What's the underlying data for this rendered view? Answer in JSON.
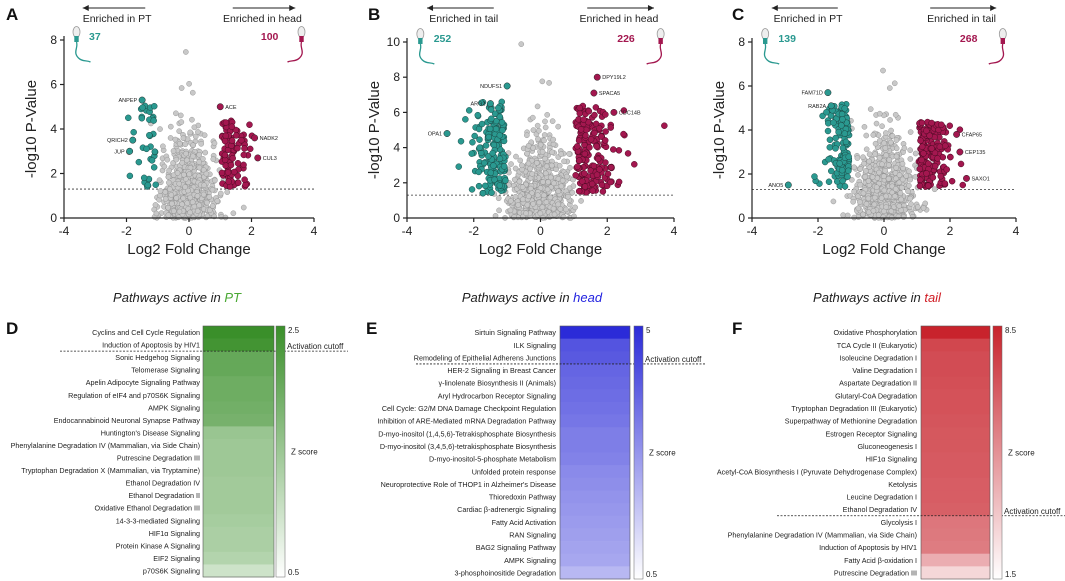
{
  "colors": {
    "teal": "#2a9990",
    "maroon": "#a3174f",
    "grey": "#c8c8c8",
    "pt_green": "#3a8f2a",
    "head_blue": "#2b2bd8",
    "tail_red": "#c8232c",
    "pt_word": "#49a833",
    "head_word": "#2323e0",
    "tail_word": "#d01c24"
  },
  "volcano_plots": [
    {
      "panel": "A",
      "left_label": "Enriched in PT",
      "right_label": "Enriched in head",
      "left_count": "37",
      "right_count": "100",
      "left_color": "#2a9990",
      "right_color": "#a3174f",
      "ylim": [
        0,
        8
      ],
      "yticks": [
        "0",
        "2",
        "4",
        "6",
        "8"
      ],
      "xticks": [
        "-4",
        "-2",
        "0",
        "2",
        "4"
      ],
      "xlabel": "Log2 Fold Change",
      "ylabel": "-log10 P-Value",
      "threshold": 1.3,
      "labels": [
        {
          "name": "ANPEP",
          "x": -1.5,
          "y": 5.3,
          "side": "left"
        },
        {
          "name": "QRICH2",
          "x": -1.8,
          "y": 3.5,
          "side": "left"
        },
        {
          "name": "JUP",
          "x": -1.9,
          "y": 3.0,
          "side": "left"
        },
        {
          "name": "ACE",
          "x": 1.0,
          "y": 5.0,
          "side": "right"
        },
        {
          "name": "NADK2",
          "x": 2.1,
          "y": 3.6,
          "side": "right"
        },
        {
          "name": "CUL3",
          "x": 2.2,
          "y": 2.7,
          "side": "right"
        }
      ]
    },
    {
      "panel": "B",
      "left_label": "Enriched in tail",
      "right_label": "Enriched in head",
      "left_count": "252",
      "right_count": "226",
      "left_color": "#2a9990",
      "right_color": "#a3174f",
      "ylim": [
        0,
        10
      ],
      "yticks": [
        "0",
        "2",
        "4",
        "6",
        "8",
        "10"
      ],
      "xticks": [
        "-4",
        "-2",
        "0",
        "2",
        "4"
      ],
      "xlabel": "Log2 Fold Change",
      "ylabel": "-log10 P-Value",
      "threshold": 1.3,
      "labels": [
        {
          "name": "NDUFS1",
          "x": -1.0,
          "y": 7.5,
          "side": "left"
        },
        {
          "name": "ARG2",
          "x": -1.5,
          "y": 6.5,
          "side": "left"
        },
        {
          "name": "OPA1",
          "x": -2.8,
          "y": 4.8,
          "side": "left"
        },
        {
          "name": "DPY19L2",
          "x": 1.7,
          "y": 8.0,
          "side": "right"
        },
        {
          "name": "SPACA5",
          "x": 1.6,
          "y": 7.1,
          "side": "right"
        },
        {
          "name": "CDC14B",
          "x": 2.2,
          "y": 6.0,
          "side": "right"
        }
      ]
    },
    {
      "panel": "C",
      "left_label": "Enriched in PT",
      "right_label": "Enriched in tail",
      "left_count": "139",
      "right_count": "268",
      "left_color": "#2a9990",
      "right_color": "#a3174f",
      "ylim": [
        0,
        8
      ],
      "yticks": [
        "0",
        "2",
        "4",
        "6",
        "8"
      ],
      "xticks": [
        "-4",
        "-2",
        "0",
        "2",
        "4"
      ],
      "xlabel": "Log2 Fold Change",
      "ylabel": "-log10 P-Value",
      "threshold": 1.3,
      "labels": [
        {
          "name": "FAM71D",
          "x": -1.7,
          "y": 5.7,
          "side": "left"
        },
        {
          "name": "RAB2A",
          "x": -1.6,
          "y": 5.1,
          "side": "left"
        },
        {
          "name": "ANO5",
          "x": -2.9,
          "y": 1.5,
          "side": "left"
        },
        {
          "name": "CFAP65",
          "x": 2.2,
          "y": 3.8,
          "side": "right"
        },
        {
          "name": "CEP135",
          "x": 2.3,
          "y": 3.0,
          "side": "right"
        },
        {
          "name": "SAXO1",
          "x": 2.5,
          "y": 1.8,
          "side": "right"
        }
      ]
    }
  ],
  "pathway_panels": [
    {
      "panel": "D",
      "title_prefix": "Pathways active in ",
      "title_word": "PT",
      "title_color": "#49a833",
      "base_color": "#3a8f2a",
      "scale_max": "2.5",
      "scale_min": "0.5",
      "zlabel": "Z score",
      "cutoff_label": "Activation cutoff",
      "cutoff_after": 2,
      "pathways": [
        {
          "name": "Cyclins and Cell Cycle Regulation",
          "z": 2.5
        },
        {
          "name": "Induction of Apoptosis by HIV1",
          "z": 2.4
        },
        {
          "name": "Sonic Hedgehog Signaling",
          "z": 2.0
        },
        {
          "name": "Telomerase Signaling",
          "z": 2.0
        },
        {
          "name": "Apelin Adipocyte Signaling Pathway",
          "z": 1.9
        },
        {
          "name": "Regulation of eIF4 and p70S6K Signaling",
          "z": 1.9
        },
        {
          "name": "AMPK Signaling",
          "z": 1.85
        },
        {
          "name": "Endocannabinoid Neuronal Synapse Pathway",
          "z": 1.8
        },
        {
          "name": "Huntington's Disease Signaling",
          "z": 1.4
        },
        {
          "name": "Phenylalanine Degradation IV (Mammalian, via Side Chain)",
          "z": 1.35
        },
        {
          "name": "Putrescine Degradation III",
          "z": 1.35
        },
        {
          "name": "Tryptophan Degradation X (Mammalian, via Tryptamine)",
          "z": 1.35
        },
        {
          "name": "Ethanol Degradation IV",
          "z": 1.3
        },
        {
          "name": "Ethanol Degradation II",
          "z": 1.3
        },
        {
          "name": "Oxidative Ethanol Degradation III",
          "z": 1.3
        },
        {
          "name": "14-3-3-mediated Signaling",
          "z": 1.25
        },
        {
          "name": "HIF1α Signaling",
          "z": 1.2
        },
        {
          "name": "Protein Kinase A Signaling",
          "z": 1.2
        },
        {
          "name": "EIF2 Signaling",
          "z": 1.1
        },
        {
          "name": "p70S6K Signaling",
          "z": 0.8
        }
      ]
    },
    {
      "panel": "E",
      "title_prefix": "Pathways active in ",
      "title_word": "head",
      "title_color": "#2323e0",
      "base_color": "#2b2bd8",
      "scale_max": "5",
      "scale_min": "0.5",
      "zlabel": "Z score",
      "cutoff_label": "Activation cutoff",
      "cutoff_after": 3,
      "pathways": [
        {
          "name": "Sirtuin Signaling Pathway",
          "z": 5.0
        },
        {
          "name": "ILK Signaling",
          "z": 4.0
        },
        {
          "name": "Remodeling of Epithelial Adherens Junctions",
          "z": 3.9
        },
        {
          "name": "HER-2 Signaling in Breast Cancer",
          "z": 3.6
        },
        {
          "name": "γ-linolenate Biosynthesis II (Animals)",
          "z": 3.5
        },
        {
          "name": "Aryl Hydrocarbon Receptor Signaling",
          "z": 3.4
        },
        {
          "name": "Cell Cycle: G2/M DNA Damage Checkpoint Regulation",
          "z": 3.3
        },
        {
          "name": "Inhibition of ARE-Mediated mRNA Degradation Pathway",
          "z": 3.2
        },
        {
          "name": "D-myo-inositol (1,4,5,6)-Tetrakisphosphate Biosynthesis",
          "z": 3.0
        },
        {
          "name": "D-myo-inositol (3,4,5,6)-tetrakisphosphate Biosynthesis",
          "z": 3.0
        },
        {
          "name": "D-myo-inositol-5-phosphate Metabolism",
          "z": 2.9
        },
        {
          "name": "Unfolded protein response",
          "z": 2.7
        },
        {
          "name": "Neuroprotective Role of THOP1 in Alzheimer's Disease",
          "z": 2.6
        },
        {
          "name": "Thioredoxin Pathway",
          "z": 2.5
        },
        {
          "name": "Cardiac β-adrenergic Signaling",
          "z": 2.4
        },
        {
          "name": "Fatty Acid Activation",
          "z": 2.3
        },
        {
          "name": "RAN Signaling",
          "z": 2.2
        },
        {
          "name": "BAG2 Signaling Pathway",
          "z": 2.1
        },
        {
          "name": "AMPK Signaling",
          "z": 2.0
        },
        {
          "name": "3-phosphoinositide Degradation",
          "z": 1.6
        }
      ]
    },
    {
      "panel": "F",
      "title_prefix": "Pathways active in ",
      "title_word": "tail",
      "title_color": "#d01c24",
      "base_color": "#c8232c",
      "scale_max": "8.5",
      "scale_min": "1.5",
      "zlabel": "Z score",
      "cutoff_label": "Activation cutoff",
      "cutoff_after": 15,
      "pathways": [
        {
          "name": "Oxidative Phosphorylation",
          "z": 8.5
        },
        {
          "name": "TCA Cycle II (Eukaryotic)",
          "z": 7.2
        },
        {
          "name": "Isoleucine Degradation I",
          "z": 7.0
        },
        {
          "name": "Valine Degradation I",
          "z": 7.0
        },
        {
          "name": "Aspartate Degradation II",
          "z": 6.9
        },
        {
          "name": "Glutaryl-CoA Degradation",
          "z": 6.8
        },
        {
          "name": "Tryptophan Degradation III (Eukaryotic)",
          "z": 6.8
        },
        {
          "name": "Superpathway of Methionine Degradation",
          "z": 6.7
        },
        {
          "name": "Estrogen Receptor Signaling",
          "z": 6.6
        },
        {
          "name": "Gluconeogenesis I",
          "z": 6.6
        },
        {
          "name": "HIF1α Signaling",
          "z": 6.5
        },
        {
          "name": "Acetyl-CoA Biosynthesis I (Pyruvate Dehydrogenase Complex)",
          "z": 6.5
        },
        {
          "name": "Ketolysis",
          "z": 6.4
        },
        {
          "name": "Leucine Degradation I",
          "z": 6.4
        },
        {
          "name": "Ethanol Degradation IV",
          "z": 6.3
        },
        {
          "name": "Glycolysis I",
          "z": 5.5
        },
        {
          "name": "Phenylalanine Degradation IV (Mammalian, via Side Chain)",
          "z": 5.4
        },
        {
          "name": "Induction of Apoptosis by HIV1",
          "z": 5.3
        },
        {
          "name": "Fatty Acid β-oxidation I",
          "z": 3.5
        },
        {
          "name": "Putrescine Degradation III",
          "z": 2.0
        }
      ]
    }
  ],
  "chart_data": [
    {
      "type": "scatter",
      "panel": "A",
      "title": "Enriched in PT vs Enriched in head",
      "xlabel": "Log2 Fold Change",
      "ylabel": "-log10 P-Value",
      "xlim": [
        -4,
        4
      ],
      "ylim": [
        0,
        8
      ],
      "significant_left": 37,
      "significant_right": 100,
      "threshold": 1.3
    },
    {
      "type": "scatter",
      "panel": "B",
      "title": "Enriched in tail vs Enriched in head",
      "xlabel": "Log2 Fold Change",
      "ylabel": "-log10 P-Value",
      "xlim": [
        -4,
        4
      ],
      "ylim": [
        0,
        10
      ],
      "significant_left": 252,
      "significant_right": 226,
      "threshold": 1.3
    },
    {
      "type": "scatter",
      "panel": "C",
      "title": "Enriched in PT vs Enriched in tail",
      "xlabel": "Log2 Fold Change",
      "ylabel": "-log10 P-Value",
      "xlim": [
        -4,
        4
      ],
      "ylim": [
        0,
        8
      ],
      "significant_left": 139,
      "significant_right": 268,
      "threshold": 1.3
    },
    {
      "type": "heatmap",
      "panel": "D",
      "title": "Pathways active in PT",
      "zrange": [
        0.5,
        2.5
      ]
    },
    {
      "type": "heatmap",
      "panel": "E",
      "title": "Pathways active in head",
      "zrange": [
        0.5,
        5
      ]
    },
    {
      "type": "heatmap",
      "panel": "F",
      "title": "Pathways active in tail",
      "zrange": [
        1.5,
        8.5
      ]
    }
  ]
}
